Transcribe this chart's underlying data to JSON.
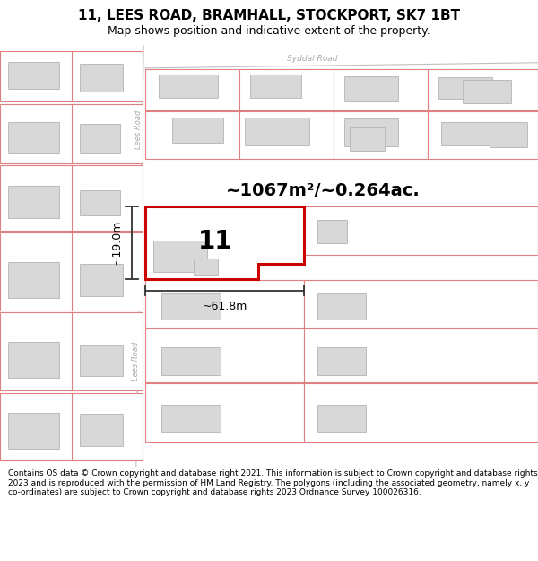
{
  "title": "11, LEES ROAD, BRAMHALL, STOCKPORT, SK7 1BT",
  "subtitle": "Map shows position and indicative extent of the property.",
  "footer": "Contains OS data © Crown copyright and database right 2021. This information is subject to Crown copyright and database rights 2023 and is reproduced with the permission of HM Land Registry. The polygons (including the associated geometry, namely x, y co-ordinates) are subject to Crown copyright and database rights 2023 Ordnance Survey 100026316.",
  "area_label": "~1067m²/~0.264ac.",
  "width_label": "~61.8m",
  "height_label": "~19.0m",
  "property_number": "11",
  "bg_color": "#ffffff",
  "plot_line_color": "#e08080",
  "road_line_color": "#c0c0c0",
  "road_label_color": "#aaaaaa",
  "building_fill": "#d8d8d8",
  "building_edge": "#bbbbbb",
  "highlight_fill": "#ffffff",
  "highlight_border": "#cc0000",
  "dim_line_color": "#333333",
  "title_fontsize": 11,
  "subtitle_fontsize": 9,
  "footer_fontsize": 6.5,
  "area_fontsize": 14,
  "number_fontsize": 20,
  "dim_fontsize": 9
}
